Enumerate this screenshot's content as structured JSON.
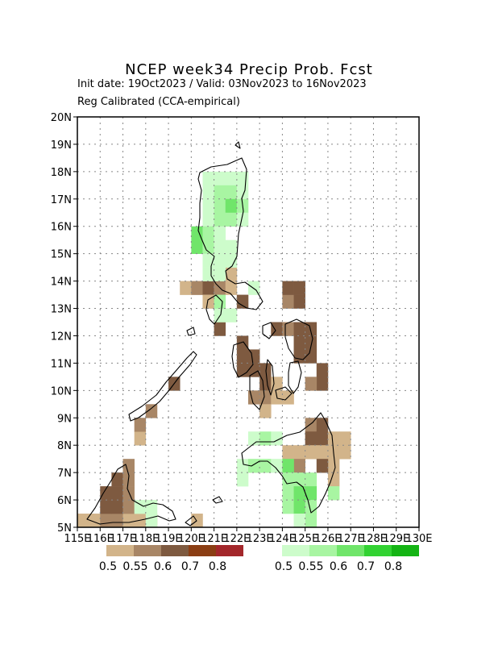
{
  "header": {
    "title": "NCEP week34 Precip Prob. Fcst",
    "subtitle_dates": "Init date: 19Oct2023 / Valid: 03Nov2023 to 16Nov2023",
    "subtitle_method": "Reg Calibrated (CCA-empirical)"
  },
  "chart_data": {
    "type": "heatmap",
    "xlim": [
      115,
      130
    ],
    "ylim": [
      5,
      20
    ],
    "x_ticks": [
      "115E",
      "116E",
      "117E",
      "118E",
      "119E",
      "120E",
      "121E",
      "122E",
      "123E",
      "124E",
      "125E",
      "126E",
      "127E",
      "128E",
      "129E",
      "130E"
    ],
    "y_ticks": [
      "5N",
      "6N",
      "7N",
      "8N",
      "9N",
      "10N",
      "11N",
      "12N",
      "13N",
      "14N",
      "15N",
      "16N",
      "17N",
      "18N",
      "19N",
      "20N"
    ],
    "grid": true,
    "legend_dry": {
      "colors": [
        "#d2b48a",
        "#a88666",
        "#7e5a40",
        "#8b3e14",
        "#a3272b"
      ],
      "labels": [
        "0.5",
        "0.55",
        "0.6",
        "0.7",
        "0.8"
      ]
    },
    "legend_wet": {
      "colors": [
        "#cdfccb",
        "#a8f5a2",
        "#70e56a",
        "#32d232",
        "#14b414"
      ],
      "labels": [
        "0.5",
        "0.55",
        "0.6",
        "0.7",
        "0.8"
      ]
    },
    "cells_dry": [
      [
        115.25,
        5.25,
        0
      ],
      [
        115.75,
        5.25,
        0
      ],
      [
        116.25,
        5.25,
        1
      ],
      [
        116.75,
        5.25,
        1
      ],
      [
        117.25,
        5.25,
        0
      ],
      [
        117.75,
        5.25,
        0
      ],
      [
        118.25,
        5.25,
        0
      ],
      [
        116.25,
        5.75,
        2
      ],
      [
        116.75,
        5.75,
        2
      ],
      [
        117.25,
        5.75,
        1
      ],
      [
        116.25,
        6.25,
        2
      ],
      [
        116.75,
        6.25,
        2
      ],
      [
        117.25,
        6.25,
        1
      ],
      [
        116.75,
        6.75,
        2
      ],
      [
        117.25,
        6.75,
        1
      ],
      [
        117.25,
        7.25,
        1
      ],
      [
        117.75,
        8.25,
        0
      ],
      [
        117.75,
        8.75,
        1
      ],
      [
        118.25,
        9.25,
        1
      ],
      [
        119.25,
        10.25,
        2
      ],
      [
        120.25,
        5.25,
        0
      ],
      [
        119.75,
        13.75,
        0
      ],
      [
        120.25,
        13.75,
        1
      ],
      [
        120.75,
        13.75,
        2
      ],
      [
        121.25,
        13.75,
        1
      ],
      [
        121.75,
        13.75,
        0
      ],
      [
        121.75,
        14.25,
        0
      ],
      [
        120.75,
        13.25,
        0
      ],
      [
        121.25,
        13.25,
        1
      ],
      [
        122.25,
        13.25,
        2
      ],
      [
        121.25,
        12.25,
        2
      ],
      [
        124.25,
        13.25,
        1
      ],
      [
        124.75,
        13.25,
        2
      ],
      [
        124.25,
        13.75,
        2
      ],
      [
        124.75,
        13.75,
        2
      ],
      [
        123.75,
        12.25,
        2
      ],
      [
        124.25,
        12.25,
        1
      ],
      [
        124.75,
        12.25,
        2
      ],
      [
        125.25,
        12.25,
        2
      ],
      [
        124.75,
        11.75,
        2
      ],
      [
        125.25,
        11.75,
        2
      ],
      [
        124.75,
        11.25,
        2
      ],
      [
        125.25,
        11.25,
        2
      ],
      [
        122.25,
        11.75,
        2
      ],
      [
        122.25,
        11.25,
        2
      ],
      [
        122.75,
        11.25,
        2
      ],
      [
        122.25,
        10.75,
        2
      ],
      [
        122.75,
        10.75,
        2
      ],
      [
        123.25,
        10.75,
        2
      ],
      [
        123.25,
        10.25,
        2
      ],
      [
        123.75,
        10.25,
        0
      ],
      [
        122.75,
        9.75,
        1
      ],
      [
        123.25,
        9.75,
        1
      ],
      [
        123.75,
        9.75,
        0
      ],
      [
        123.25,
        9.25,
        0
      ],
      [
        124.25,
        9.75,
        0
      ],
      [
        125.75,
        10.75,
        2
      ],
      [
        125.75,
        10.25,
        2
      ],
      [
        125.25,
        10.25,
        1
      ],
      [
        125.25,
        8.75,
        1
      ],
      [
        125.75,
        8.75,
        2
      ],
      [
        125.25,
        8.25,
        2
      ],
      [
        125.75,
        8.25,
        2
      ],
      [
        126.25,
        8.25,
        0
      ],
      [
        124.75,
        7.75,
        0
      ],
      [
        125.25,
        7.75,
        0
      ],
      [
        125.75,
        7.75,
        0
      ],
      [
        126.25,
        7.75,
        0
      ],
      [
        126.25,
        7.25,
        0
      ],
      [
        124.25,
        7.75,
        0
      ],
      [
        125.75,
        7.25,
        2
      ],
      [
        126.25,
        6.75,
        0
      ],
      [
        124.75,
        7.25,
        1
      ],
      [
        126.75,
        8.25,
        0
      ],
      [
        126.75,
        7.75,
        0
      ]
    ],
    "cells_wet": [
      [
        120.75,
        17.75,
        0
      ],
      [
        121.25,
        17.75,
        0
      ],
      [
        121.75,
        17.75,
        0
      ],
      [
        122.25,
        17.75,
        0
      ],
      [
        120.75,
        17.25,
        0
      ],
      [
        121.25,
        17.25,
        1
      ],
      [
        121.75,
        17.25,
        1
      ],
      [
        122.25,
        17.25,
        0
      ],
      [
        120.75,
        16.75,
        0
      ],
      [
        121.25,
        16.75,
        1
      ],
      [
        121.75,
        16.75,
        2
      ],
      [
        122.25,
        16.75,
        1
      ],
      [
        120.75,
        16.25,
        0
      ],
      [
        121.25,
        16.25,
        1
      ],
      [
        121.75,
        16.25,
        1
      ],
      [
        122.25,
        16.25,
        0
      ],
      [
        120.25,
        15.75,
        2
      ],
      [
        120.75,
        15.75,
        1
      ],
      [
        121.25,
        15.75,
        0
      ],
      [
        120.25,
        15.25,
        2
      ],
      [
        120.75,
        15.25,
        1
      ],
      [
        121.25,
        15.25,
        0
      ],
      [
        121.75,
        15.25,
        0
      ],
      [
        120.75,
        14.75,
        0
      ],
      [
        121.25,
        14.75,
        0
      ],
      [
        121.75,
        14.75,
        0
      ],
      [
        120.75,
        14.25,
        0
      ],
      [
        121.25,
        14.25,
        0
      ],
      [
        122.75,
        13.75,
        0
      ],
      [
        121.25,
        12.75,
        0
      ],
      [
        121.75,
        12.75,
        0
      ],
      [
        121.25,
        13.25,
        1
      ],
      [
        122.75,
        8.25,
        0
      ],
      [
        123.25,
        8.25,
        1
      ],
      [
        123.75,
        8.25,
        0
      ],
      [
        122.25,
        7.25,
        0
      ],
      [
        122.75,
        7.25,
        1
      ],
      [
        123.25,
        7.25,
        1
      ],
      [
        123.75,
        7.25,
        0
      ],
      [
        122.25,
        6.75,
        0
      ],
      [
        124.25,
        7.25,
        2
      ],
      [
        124.25,
        6.75,
        1
      ],
      [
        124.75,
        6.75,
        1
      ],
      [
        125.25,
        6.75,
        1
      ],
      [
        124.25,
        6.25,
        1
      ],
      [
        124.75,
        6.25,
        2
      ],
      [
        125.25,
        6.25,
        2
      ],
      [
        124.25,
        5.75,
        1
      ],
      [
        124.75,
        5.75,
        2
      ],
      [
        125.25,
        5.75,
        1
      ],
      [
        125.25,
        5.25,
        1
      ],
      [
        124.75,
        5.25,
        0
      ],
      [
        126.25,
        6.25,
        1
      ],
      [
        117.75,
        5.75,
        0
      ],
      [
        118.25,
        5.75,
        0
      ],
      [
        118.25,
        5.25,
        0
      ]
    ]
  }
}
